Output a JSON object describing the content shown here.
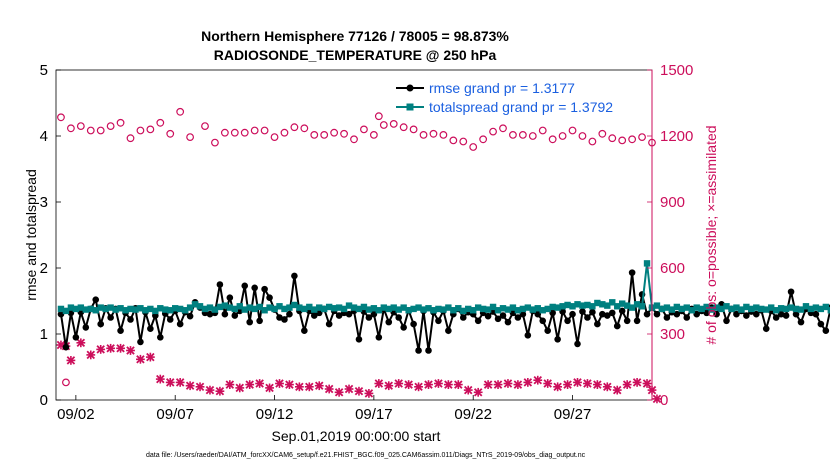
{
  "chart_data": {
    "type": "line",
    "title": "Northern Hemisphere 77126 / 78005 = 98.873%",
    "subtitle": "RADIOSONDE_TEMPERATURE @ 250 hPa",
    "xlabel": "Sep.01,2019 00:00:00 start",
    "ylabel_left": "rmse and totalspread",
    "ylabel_right": "# of obs: o=possible; ×=assimilated",
    "ylim_left": [
      0,
      5
    ],
    "ylim_right": [
      0,
      1500
    ],
    "yticks_left": [
      "0",
      "1",
      "2",
      "3",
      "4",
      "5"
    ],
    "yticks_right": [
      "0",
      "300",
      "600",
      "900",
      "1200",
      "1500"
    ],
    "xticks": [
      {
        "day": 2,
        "label": "09/02"
      },
      {
        "day": 7,
        "label": "09/07"
      },
      {
        "day": 12,
        "label": "09/12"
      },
      {
        "day": 17,
        "label": "09/17"
      },
      {
        "day": 22,
        "label": "09/22"
      },
      {
        "day": 27,
        "label": "09/27"
      }
    ],
    "xlim": [
      1,
      31
    ],
    "x_start": 1.25,
    "x_step": 0.25,
    "colors": {
      "rmse": "#000000",
      "spread": "#008080",
      "obs": "#cc0e5b",
      "legend_text": "#1a5fe0"
    },
    "series": [
      {
        "name": "rmse grand pr = 1.3177",
        "key": "rmse",
        "axis": "left",
        "values": [
          1.3,
          0.8,
          1.32,
          0.95,
          1.33,
          1.1,
          1.38,
          1.52,
          1.15,
          1.39,
          1.25,
          1.38,
          1.05,
          1.32,
          1.22,
          1.39,
          0.88,
          1.33,
          1.08,
          1.28,
          0.95,
          1.31,
          1.22,
          1.35,
          1.15,
          1.33,
          1.27,
          1.48,
          1.4,
          1.32,
          1.3,
          1.32,
          1.75,
          1.3,
          1.55,
          1.28,
          1.35,
          1.73,
          1.18,
          1.7,
          1.2,
          1.68,
          1.55,
          1.37,
          1.25,
          1.22,
          1.3,
          1.88,
          1.35,
          1.05,
          1.35,
          1.28,
          1.32,
          1.38,
          1.15,
          1.35,
          1.28,
          1.32,
          1.3,
          1.35,
          0.92,
          1.34,
          1.25,
          1.3,
          0.95,
          1.38,
          1.18,
          1.33,
          1.25,
          1.1,
          1.36,
          1.15,
          0.75,
          1.35,
          0.75,
          1.33,
          1.2,
          1.35,
          1.05,
          1.3,
          1.38,
          1.25,
          1.33,
          1.3,
          1.2,
          1.32,
          1.27,
          1.34,
          1.23,
          1.28,
          1.18,
          1.32,
          1.25,
          1.3,
          0.98,
          1.35,
          1.3,
          1.2,
          1.05,
          1.32,
          0.92,
          1.34,
          1.2,
          1.3,
          0.85,
          1.34,
          1.25,
          1.33,
          1.15,
          1.3,
          1.28,
          1.32,
          1.12,
          1.35,
          1.2,
          1.93,
          1.2,
          1.6,
          1.3,
          1.4,
          1.3,
          1.38,
          1.25,
          1.33,
          1.3,
          1.35,
          1.25,
          1.38,
          1.3,
          1.35,
          1.32,
          1.4,
          1.3,
          1.45,
          1.2,
          1.38,
          1.3,
          1.35,
          1.28,
          1.34,
          1.3,
          1.36,
          1.08,
          1.35,
          1.25,
          1.3,
          1.28,
          1.64,
          1.3,
          1.18,
          1.38,
          1.32,
          1.3,
          1.15,
          1.05,
          1.4,
          1.25
        ]
      },
      {
        "name": "totalspread grand pr = 1.3792",
        "key": "spread",
        "axis": "left",
        "values": [
          1.38,
          1.35,
          1.4,
          1.38,
          1.4,
          1.37,
          1.38,
          1.36,
          1.4,
          1.38,
          1.4,
          1.37,
          1.39,
          1.36,
          1.38,
          1.37,
          1.39,
          1.36,
          1.38,
          1.35,
          1.39,
          1.37,
          1.36,
          1.39,
          1.38,
          1.36,
          1.4,
          1.45,
          1.42,
          1.38,
          1.4,
          1.37,
          1.41,
          1.43,
          1.4,
          1.38,
          1.42,
          1.37,
          1.4,
          1.38,
          1.41,
          1.36,
          1.4,
          1.38,
          1.42,
          1.38,
          1.4,
          1.44,
          1.4,
          1.38,
          1.41,
          1.37,
          1.4,
          1.38,
          1.41,
          1.39,
          1.4,
          1.38,
          1.43,
          1.4,
          1.38,
          1.41,
          1.37,
          1.39,
          1.36,
          1.4,
          1.38,
          1.4,
          1.37,
          1.4,
          1.36,
          1.38,
          1.4,
          1.37,
          1.39,
          1.36,
          1.38,
          1.37,
          1.4,
          1.36,
          1.39,
          1.35,
          1.38,
          1.36,
          1.4,
          1.38,
          1.37,
          1.41,
          1.36,
          1.39,
          1.37,
          1.4,
          1.36,
          1.38,
          1.4,
          1.37,
          1.39,
          1.36,
          1.38,
          1.41,
          1.4,
          1.42,
          1.44,
          1.42,
          1.45,
          1.43,
          1.44,
          1.42,
          1.47,
          1.45,
          1.43,
          1.48,
          1.42,
          1.46,
          1.43,
          1.4,
          1.45,
          1.42,
          2.07,
          1.4,
          1.43,
          1.38,
          1.4,
          1.37,
          1.41,
          1.38,
          1.4,
          1.36,
          1.4,
          1.38,
          1.41,
          1.37,
          1.4,
          1.38,
          1.42,
          1.38,
          1.4,
          1.37,
          1.41,
          1.38,
          1.4,
          1.38,
          1.37,
          1.4,
          1.36,
          1.39,
          1.38,
          1.4,
          1.38,
          1.37,
          1.42,
          1.38,
          1.4,
          1.38,
          1.41,
          1.36,
          1.42
        ]
      },
      {
        "name": "obs possible",
        "key": "obs_possible",
        "axis": "right",
        "marker": "o",
        "points": [
          [
            1.25,
            1285
          ],
          [
            1.5,
            80
          ],
          [
            1.75,
            1235
          ],
          [
            2.25,
            1245
          ],
          [
            2.75,
            1225
          ],
          [
            3.25,
            1225
          ],
          [
            3.75,
            1245
          ],
          [
            4.25,
            1260
          ],
          [
            4.75,
            1190
          ],
          [
            5.25,
            1225
          ],
          [
            5.75,
            1230
          ],
          [
            6.25,
            1260
          ],
          [
            6.75,
            1210
          ],
          [
            7.25,
            1310
          ],
          [
            7.75,
            1195
          ],
          [
            8.5,
            1245
          ],
          [
            9,
            1170
          ],
          [
            9.5,
            1215
          ],
          [
            10,
            1215
          ],
          [
            10.5,
            1215
          ],
          [
            11,
            1225
          ],
          [
            11.5,
            1225
          ],
          [
            12,
            1195
          ],
          [
            12.5,
            1215
          ],
          [
            13,
            1240
          ],
          [
            13.5,
            1235
          ],
          [
            14,
            1205
          ],
          [
            14.5,
            1205
          ],
          [
            15,
            1215
          ],
          [
            15.5,
            1210
          ],
          [
            16,
            1185
          ],
          [
            16.5,
            1230
          ],
          [
            17,
            1205
          ],
          [
            17.25,
            1290
          ],
          [
            17.5,
            1250
          ],
          [
            18,
            1255
          ],
          [
            18.5,
            1240
          ],
          [
            19,
            1230
          ],
          [
            19.5,
            1205
          ],
          [
            20,
            1210
          ],
          [
            20.5,
            1205
          ],
          [
            21,
            1180
          ],
          [
            21.5,
            1175
          ],
          [
            22,
            1150
          ],
          [
            22.5,
            1185
          ],
          [
            23,
            1220
          ],
          [
            23.5,
            1235
          ],
          [
            24,
            1205
          ],
          [
            24.5,
            1205
          ],
          [
            25,
            1200
          ],
          [
            25.5,
            1225
          ],
          [
            26,
            1185
          ],
          [
            26.5,
            1200
          ],
          [
            27,
            1225
          ],
          [
            27.5,
            1200
          ],
          [
            28,
            1175
          ],
          [
            28.5,
            1210
          ],
          [
            29,
            1190
          ],
          [
            29.5,
            1180
          ],
          [
            30,
            1185
          ],
          [
            30.5,
            1195
          ],
          [
            31,
            1170
          ]
        ]
      },
      {
        "name": "obs assimilated",
        "key": "obs_assim",
        "axis": "right",
        "marker": "x",
        "points": [
          [
            1.25,
            250
          ],
          [
            1.5,
            245
          ],
          [
            1.75,
            180
          ],
          [
            2.25,
            260
          ],
          [
            2.75,
            205
          ],
          [
            3.25,
            230
          ],
          [
            3.75,
            235
          ],
          [
            4.25,
            235
          ],
          [
            4.75,
            225
          ],
          [
            5.25,
            185
          ],
          [
            5.75,
            195
          ],
          [
            6.25,
            95
          ],
          [
            6.75,
            80
          ],
          [
            7.25,
            80
          ],
          [
            7.75,
            65
          ],
          [
            8.25,
            60
          ],
          [
            8.75,
            45
          ],
          [
            9.25,
            40
          ],
          [
            9.75,
            70
          ],
          [
            10.25,
            55
          ],
          [
            10.75,
            70
          ],
          [
            11.25,
            75
          ],
          [
            11.75,
            55
          ],
          [
            12.25,
            75
          ],
          [
            12.75,
            70
          ],
          [
            13.25,
            60
          ],
          [
            13.75,
            60
          ],
          [
            14.25,
            65
          ],
          [
            14.75,
            50
          ],
          [
            15.25,
            35
          ],
          [
            15.75,
            50
          ],
          [
            16.25,
            40
          ],
          [
            16.75,
            30
          ],
          [
            17.25,
            75
          ],
          [
            17.75,
            65
          ],
          [
            18.25,
            75
          ],
          [
            18.75,
            70
          ],
          [
            19.25,
            60
          ],
          [
            19.75,
            70
          ],
          [
            20.25,
            75
          ],
          [
            20.75,
            70
          ],
          [
            21.25,
            70
          ],
          [
            21.75,
            45
          ],
          [
            22.25,
            35
          ],
          [
            22.75,
            70
          ],
          [
            23.25,
            70
          ],
          [
            23.75,
            75
          ],
          [
            24.25,
            70
          ],
          [
            24.75,
            80
          ],
          [
            25.25,
            90
          ],
          [
            25.75,
            75
          ],
          [
            26.25,
            60
          ],
          [
            26.75,
            70
          ],
          [
            27.25,
            80
          ],
          [
            27.75,
            75
          ],
          [
            28.25,
            70
          ],
          [
            28.75,
            60
          ],
          [
            29.25,
            45
          ],
          [
            29.75,
            70
          ],
          [
            30.25,
            80
          ],
          [
            30.75,
            75
          ],
          [
            31,
            45
          ],
          [
            31.25,
            5
          ]
        ]
      }
    ],
    "legend_position": "top-right",
    "grid": false
  },
  "footnote": "data file: /Users/raeder/DAI/ATM_forcXX/CAM6_setup/f.e21.FHIST_BGC.f09_025.CAM6assim.011/Diags_NTrS_2019-09/obs_diag_output.nc"
}
